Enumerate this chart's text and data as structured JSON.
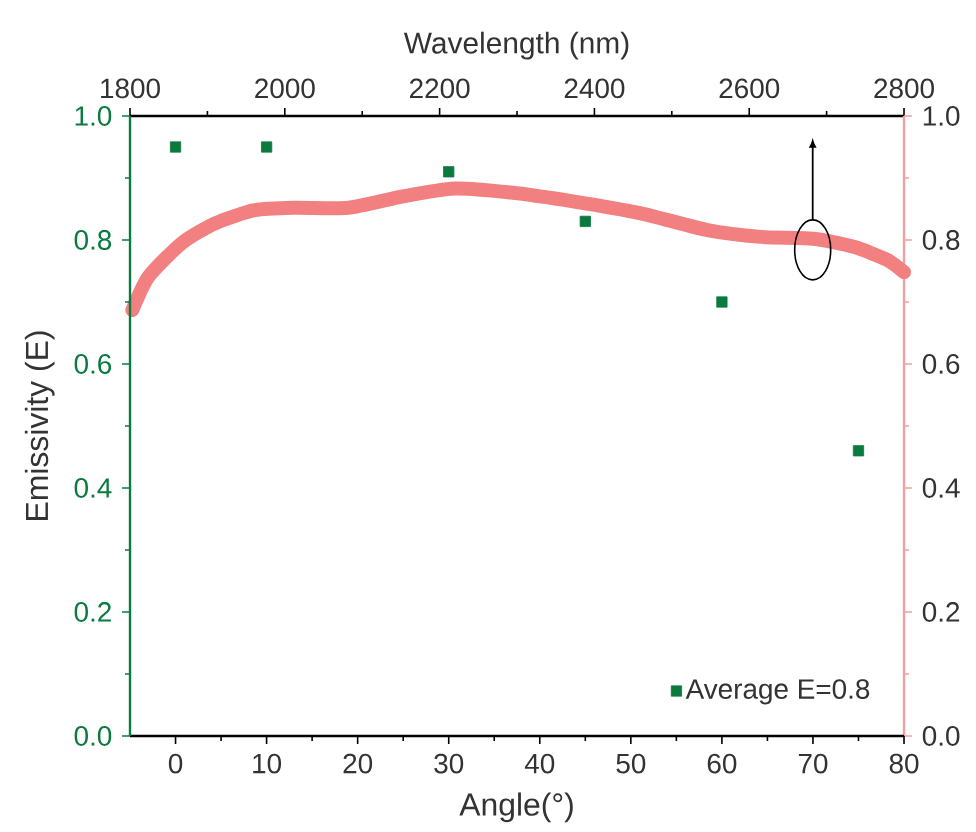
{
  "chart_data": {
    "type": "scatter",
    "xlabel": "Angle(°)",
    "ylabel": "Emissivity (E)",
    "x2label": "Wavelength (nm)",
    "xlim": [
      -5,
      80
    ],
    "xticks": [
      0,
      10,
      20,
      30,
      40,
      50,
      60,
      70,
      80
    ],
    "x2lim": [
      1800,
      2800
    ],
    "x2ticks": [
      1800,
      2000,
      2200,
      2400,
      2600,
      2800
    ],
    "ylim": [
      0,
      1
    ],
    "yticks": [
      {
        "value": 0,
        "label": "0.0"
      },
      {
        "value": 0.2,
        "label": "0.2"
      },
      {
        "value": 0.4,
        "label": "0.4"
      },
      {
        "value": 0.6,
        "label": "0.6"
      },
      {
        "value": 0.8,
        "label": "0.8"
      },
      {
        "value": 1,
        "label": "1.0"
      }
    ],
    "y2lim": [
      0,
      1
    ],
    "y2ticks": [
      {
        "value": 0,
        "label": "0.0"
      },
      {
        "value": 0.2,
        "label": "0.2"
      },
      {
        "value": 0.4,
        "label": "0.4"
      },
      {
        "value": 0.6,
        "label": "0.6"
      },
      {
        "value": 0.8,
        "label": "0.8"
      },
      {
        "value": 1,
        "label": "1.0"
      }
    ],
    "legend": "bottom right",
    "grid": false,
    "series": [
      {
        "name": "Average E=0.8",
        "marker": "square",
        "color": "#0b7a3e",
        "x": [
          0,
          10,
          30,
          45,
          60,
          75
        ],
        "values": [
          0.95,
          0.95,
          0.91,
          0.83,
          0.7,
          0.46
        ]
      },
      {
        "type": "line",
        "axis": "x2",
        "marker": "none",
        "line_style": "solid",
        "color": "#f28080",
        "x": [
          1803,
          1824,
          1867,
          1910,
          1961,
          2013,
          2082,
          2151,
          2219,
          2288,
          2374,
          2460,
          2546,
          2615,
          2683,
          2735,
          2778,
          2800
        ],
        "values": [
          0.687,
          0.741,
          0.795,
          0.827,
          0.848,
          0.852,
          0.852,
          0.87,
          0.883,
          0.877,
          0.862,
          0.843,
          0.816,
          0.805,
          0.802,
          0.789,
          0.768,
          0.748
        ]
      }
    ]
  }
}
